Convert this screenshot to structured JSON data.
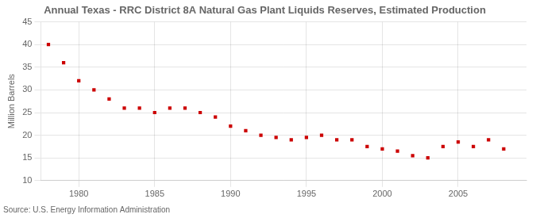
{
  "chart_data": {
    "type": "scatter",
    "title": "Annual Texas - RRC District 8A Natural Gas Plant Liquids Reserves, Estimated Production",
    "ylabel": "Million Barrels",
    "source": "Source: U.S. Energy Information Administration",
    "x": [
      1978,
      1979,
      1980,
      1981,
      1982,
      1983,
      1984,
      1985,
      1986,
      1987,
      1988,
      1989,
      1990,
      1991,
      1992,
      1993,
      1994,
      1995,
      1996,
      1997,
      1998,
      1999,
      2000,
      2001,
      2002,
      2003,
      2004,
      2005,
      2006,
      2007,
      2008
    ],
    "values": [
      40.0,
      36.0,
      32.0,
      30.0,
      28.0,
      26.0,
      26.0,
      25.0,
      26.0,
      26.0,
      25.0,
      24.0,
      22.0,
      21.0,
      20.0,
      19.5,
      19.0,
      19.5,
      20.0,
      19.0,
      19.0,
      17.5,
      17.0,
      16.5,
      15.5,
      15.0,
      17.5,
      18.5,
      17.5,
      19.0,
      17.0
    ],
    "color": "#cc0000",
    "marker": "square",
    "line_style": "none",
    "xlim": [
      1977.5,
      2009.5
    ],
    "xticks": [
      1980,
      1985,
      1990,
      1995,
      2000,
      2005
    ],
    "ylim": [
      10,
      45
    ],
    "yticks": [
      10,
      15,
      20,
      25,
      30,
      35,
      40,
      45
    ],
    "grid": true
  }
}
